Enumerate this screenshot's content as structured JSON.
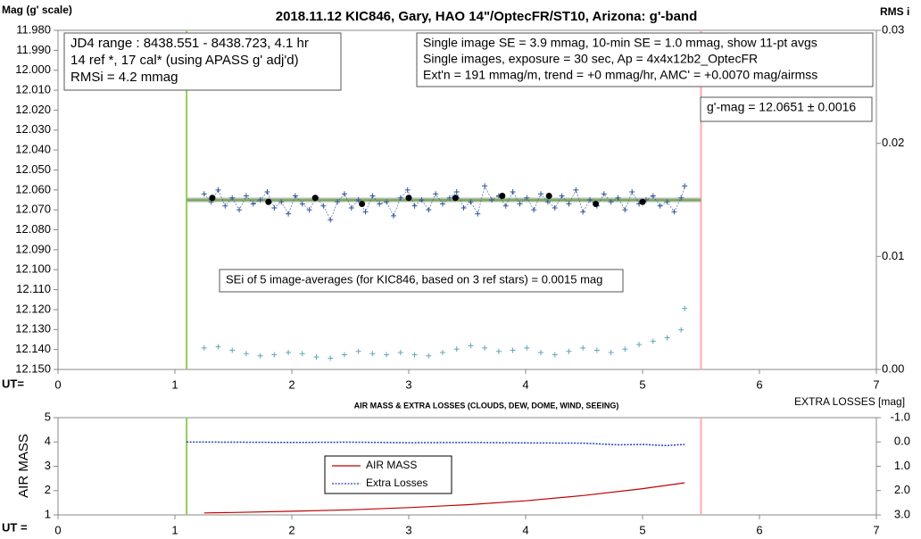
{
  "chart_data": [
    {
      "type": "scatter",
      "title": "2018.11.12 KIC846, Gary, HAO 14\"/OptecFR/ST10, Arizona: g'-band",
      "ylabel": "Mag (g' scale)",
      "y2label": "RMS i",
      "xlabel": "UT=",
      "xlim": [
        0,
        7
      ],
      "xticks": [
        0,
        1,
        2,
        3,
        4,
        5,
        6,
        7
      ],
      "ylim": [
        12.15,
        11.98
      ],
      "yticks": [
        {
          "value": 11.98,
          "label": "11.980"
        },
        {
          "value": 11.99,
          "label": "11.990"
        },
        {
          "value": 12.0,
          "label": "12.000"
        },
        {
          "value": 12.01,
          "label": "12.010"
        },
        {
          "value": 12.02,
          "label": "12.020"
        },
        {
          "value": 12.03,
          "label": "12.030"
        },
        {
          "value": 12.04,
          "label": "12.040"
        },
        {
          "value": 12.05,
          "label": "12.050"
        },
        {
          "value": 12.06,
          "label": "12.060"
        },
        {
          "value": 12.07,
          "label": "12.070"
        },
        {
          "value": 12.08,
          "label": "12.080"
        },
        {
          "value": 12.09,
          "label": "12.090"
        },
        {
          "value": 12.1,
          "label": "12.100"
        },
        {
          "value": 12.11,
          "label": "12.110"
        },
        {
          "value": 12.12,
          "label": "12.120"
        },
        {
          "value": 12.13,
          "label": "12.130"
        },
        {
          "value": 12.14,
          "label": "12.140"
        },
        {
          "value": 12.15,
          "label": "12.150"
        }
      ],
      "y2lim": [
        0,
        0.03
      ],
      "y2ticks": [
        {
          "value": 0,
          "label": "0.00"
        },
        0.01,
        0.02,
        0.03
      ],
      "vlines": [
        {
          "value": 1.1,
          "color": "#92d050"
        },
        {
          "value": 5.5,
          "color": "#ffaaaa"
        }
      ],
      "series": [
        {
          "color": "#a6a6a6",
          "marker": "none",
          "line_width": 5,
          "x": [
            1.1,
            5.5
          ],
          "values": [
            12.065,
            12.065
          ]
        },
        {
          "color": "#70ad47",
          "marker": "none",
          "line_width": 2,
          "x": [
            1.1,
            5.5
          ],
          "values": [
            12.0651,
            12.0651
          ]
        },
        {
          "color": "#2f5597",
          "marker": "plus",
          "line_width": 0.6,
          "dash": true,
          "x": [
            1.25,
            1.31,
            1.37,
            1.43,
            1.49,
            1.55,
            1.61,
            1.67,
            1.73,
            1.79,
            1.85,
            1.91,
            1.97,
            2.03,
            2.09,
            2.15,
            2.21,
            2.27,
            2.33,
            2.39,
            2.45,
            2.51,
            2.57,
            2.63,
            2.69,
            2.75,
            2.81,
            2.87,
            2.93,
            2.99,
            3.05,
            3.11,
            3.17,
            3.23,
            3.29,
            3.35,
            3.41,
            3.47,
            3.53,
            3.59,
            3.65,
            3.71,
            3.77,
            3.83,
            3.89,
            3.95,
            4.01,
            4.07,
            4.13,
            4.19,
            4.25,
            4.31,
            4.37,
            4.43,
            4.49,
            4.55,
            4.61,
            4.67,
            4.73,
            4.79,
            4.85,
            4.91,
            4.97,
            5.03,
            5.09,
            5.15,
            5.21,
            5.27,
            5.33,
            5.36
          ],
          "values": [
            12.062,
            12.066,
            12.06,
            12.068,
            12.064,
            12.07,
            12.063,
            12.067,
            12.065,
            12.061,
            12.069,
            12.066,
            12.072,
            12.063,
            12.067,
            12.07,
            12.064,
            12.068,
            12.075,
            12.066,
            12.062,
            12.069,
            12.065,
            12.071,
            12.063,
            12.067,
            12.066,
            12.073,
            12.064,
            12.06,
            12.068,
            12.065,
            12.07,
            12.062,
            12.067,
            12.064,
            12.061,
            12.069,
            12.066,
            12.072,
            12.058,
            12.065,
            12.063,
            12.068,
            12.061,
            12.067,
            12.064,
            12.07,
            12.062,
            12.066,
            12.069,
            12.063,
            12.067,
            12.06,
            12.071,
            12.065,
            12.068,
            12.062,
            12.066,
            12.064,
            12.07,
            12.061,
            12.067,
            12.065,
            12.063,
            12.068,
            12.066,
            12.071,
            12.064,
            12.058
          ]
        },
        {
          "color": "#000000",
          "marker": "dot",
          "line_width": 0,
          "x": [
            1.32,
            1.8,
            2.2,
            2.6,
            3.0,
            3.4,
            3.8,
            4.2,
            4.6,
            5.0
          ],
          "values": [
            12.064,
            12.066,
            12.064,
            12.067,
            12.064,
            12.064,
            12.063,
            12.063,
            12.067,
            12.066
          ]
        },
        {
          "color": "#5fa8b8",
          "marker": "plus",
          "line_width": 0,
          "axis": "y2",
          "x": [
            1.25,
            1.37,
            1.49,
            1.61,
            1.73,
            1.85,
            1.97,
            2.09,
            2.21,
            2.33,
            2.45,
            2.57,
            2.69,
            2.81,
            2.93,
            3.05,
            3.17,
            3.29,
            3.41,
            3.53,
            3.65,
            3.77,
            3.89,
            4.01,
            4.13,
            4.25,
            4.37,
            4.49,
            4.61,
            4.73,
            4.85,
            4.97,
            5.09,
            5.21,
            5.33,
            5.36
          ],
          "values": [
            0.0019,
            0.002,
            0.0017,
            0.0014,
            0.0012,
            0.0013,
            0.0015,
            0.0014,
            0.0011,
            0.001,
            0.0013,
            0.0016,
            0.0014,
            0.0013,
            0.0015,
            0.0013,
            0.0012,
            0.0015,
            0.0018,
            0.0021,
            0.0019,
            0.0016,
            0.0017,
            0.0019,
            0.0015,
            0.0013,
            0.0016,
            0.0019,
            0.0017,
            0.0015,
            0.0018,
            0.0022,
            0.0025,
            0.0028,
            0.0035,
            0.0054
          ]
        }
      ],
      "annotations": [
        {
          "lines": [
            "JD4 range : 8438.551 - 8438.723,  4.1  hr",
            "14 ref *, 17 cal* (using APASS g' adj'd)",
            "RMSi = 4.2 mmag"
          ]
        },
        {
          "lines": [
            "Single image SE = 3.9 mmag, 10-min SE = 1.0 mmag, show  11-pt avgs",
            "Single images, exposure = 30 sec, Ap = 4x4x12b2_OptecFR",
            "Ext'n = 191 mmag/m, trend =  +0 mmag/hr, AMC' = +0.0070 mag/airmss"
          ]
        },
        {
          "lines": [
            "g'-mag = 12.0651 ± 0.0016"
          ]
        },
        {
          "lines": [
            "SEi of 5 image-averages (for KIC846, based on 3 ref stars) = 0.0015 mag"
          ]
        }
      ]
    },
    {
      "type": "line",
      "title": "AIR MASS & EXTRA LOSSES (CLOUDS, DEW, DOME, WIND, SEEING)",
      "ylabel": "AIR MASS",
      "y2label": "EXTRA LOSSES [mag]",
      "xlabel": "UT =",
      "xlim": [
        0,
        7
      ],
      "xticks": [
        0,
        1,
        2,
        3,
        4,
        5,
        6,
        7
      ],
      "ylim": [
        1,
        5
      ],
      "yticks": [
        1,
        2,
        3,
        4,
        5
      ],
      "y2lim": [
        3,
        -1
      ],
      "y2ticks": [
        {
          "value": -1,
          "label": "-1.0"
        },
        {
          "value": 0,
          "label": "0.0"
        },
        {
          "value": 1,
          "label": "1.0"
        },
        {
          "value": 2,
          "label": "2.0"
        },
        {
          "value": 3,
          "label": "3.0"
        }
      ],
      "vlines": [
        {
          "value": 1.1,
          "color": "#92d050"
        },
        {
          "value": 5.5,
          "color": "#ffaaaa"
        }
      ],
      "legend": "center",
      "series": [
        {
          "name": "AIR MASS",
          "color": "#c00000",
          "marker": "none",
          "line_width": 1.2,
          "x": [
            1.25,
            1.5,
            2.0,
            2.5,
            3.0,
            3.5,
            4.0,
            4.5,
            5.0,
            5.36
          ],
          "values": [
            1.08,
            1.1,
            1.15,
            1.21,
            1.3,
            1.42,
            1.58,
            1.8,
            2.08,
            2.32
          ]
        },
        {
          "name": "Extra Losses",
          "color": "#1f3fbf",
          "marker": "none",
          "line_width": 1.5,
          "dash": true,
          "axis": "y2",
          "x": [
            1.1,
            1.5,
            2.0,
            2.5,
            3.0,
            3.5,
            4.0,
            4.5,
            4.8,
            5.0,
            5.2,
            5.36
          ],
          "values": [
            0,
            0.01,
            0.02,
            0.01,
            0.03,
            0.02,
            0.04,
            0.05,
            0.12,
            0.1,
            0.15,
            0.1
          ]
        }
      ]
    }
  ]
}
